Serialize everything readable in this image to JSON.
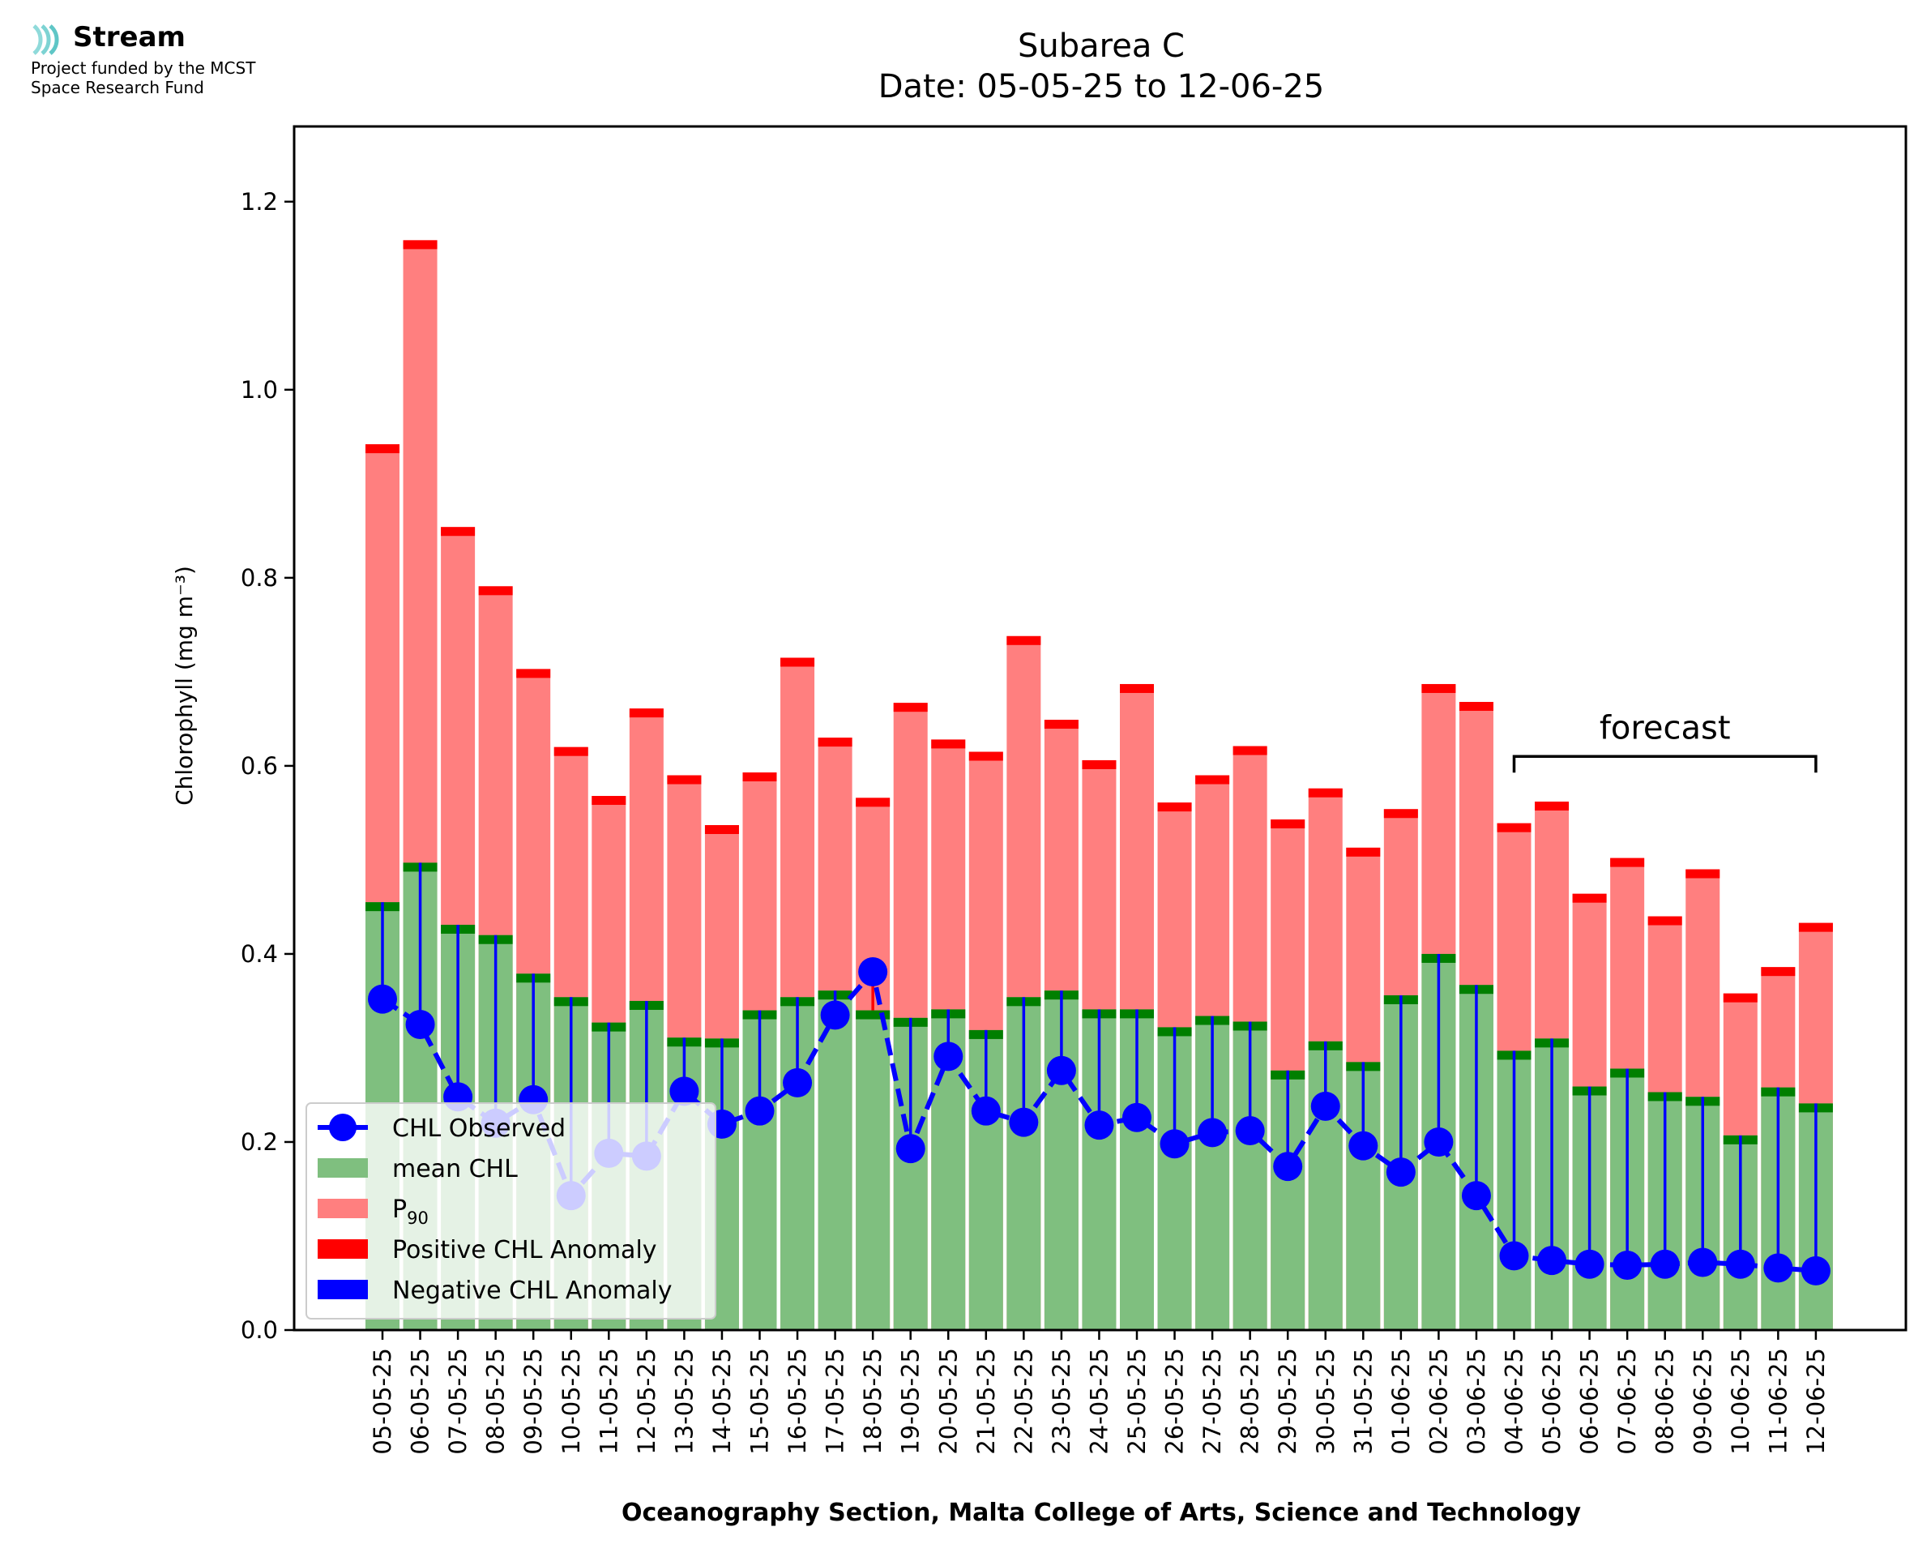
{
  "logo": {
    "name": "Stream",
    "line1": "Project funded by the MCST",
    "line2": "Space Research Fund"
  },
  "chart_data": {
    "type": "bar",
    "title": "Subarea C",
    "subtitle": "Date: 05-05-25 to 12-06-25",
    "xlabel": "Oceanography Section, Malta College of Arts, Science and Technology",
    "ylabel": "Chlorophyll (mg m⁻³)",
    "ylim": [
      0,
      1.28
    ],
    "yticks": [
      0.0,
      0.2,
      0.4,
      0.6,
      0.8,
      1.0,
      1.2
    ],
    "ytick_labels": [
      "0.0",
      "0.2",
      "0.4",
      "0.6",
      "0.8",
      "1.0",
      "1.2"
    ],
    "grid": false,
    "legend_placement": "lower-left",
    "categories": [
      "05-05-25",
      "06-05-25",
      "07-05-25",
      "08-05-25",
      "09-05-25",
      "10-05-25",
      "11-05-25",
      "12-05-25",
      "13-05-25",
      "14-05-25",
      "15-05-25",
      "16-05-25",
      "17-05-25",
      "18-05-25",
      "19-05-25",
      "20-05-25",
      "21-05-25",
      "22-05-25",
      "23-05-25",
      "24-05-25",
      "25-05-25",
      "26-05-25",
      "27-05-25",
      "28-05-25",
      "29-05-25",
      "30-05-25",
      "31-05-25",
      "01-06-25",
      "02-06-25",
      "03-06-25",
      "04-06-25",
      "05-06-25",
      "06-06-25",
      "07-06-25",
      "08-06-25",
      "09-06-25",
      "10-06-25",
      "11-06-25",
      "12-06-25"
    ],
    "series": [
      {
        "name": "CHL Observed",
        "color": "#0000ff",
        "values": [
          0.352,
          0.325,
          0.248,
          0.22,
          0.245,
          0.143,
          0.188,
          0.185,
          0.254,
          0.219,
          0.233,
          0.263,
          0.335,
          0.381,
          0.193,
          0.291,
          0.233,
          0.221,
          0.276,
          0.218,
          0.226,
          0.198,
          0.21,
          0.212,
          0.174,
          0.238,
          0.196,
          0.168,
          0.2,
          0.143,
          0.079,
          0.074,
          0.07,
          0.069,
          0.07,
          0.072,
          0.07,
          0.066,
          0.063
        ]
      },
      {
        "name": "mean CHL",
        "color": "#7fbf7f",
        "edge_color": "#007f00",
        "values": [
          0.455,
          0.497,
          0.431,
          0.42,
          0.379,
          0.354,
          0.327,
          0.35,
          0.311,
          0.31,
          0.34,
          0.354,
          0.361,
          0.34,
          0.332,
          0.341,
          0.319,
          0.354,
          0.361,
          0.341,
          0.341,
          0.322,
          0.334,
          0.328,
          0.276,
          0.307,
          0.285,
          0.356,
          0.4,
          0.367,
          0.297,
          0.31,
          0.259,
          0.278,
          0.253,
          0.248,
          0.207,
          0.258,
          0.241
        ]
      },
      {
        "name": "P90",
        "color": "#ff7f7f",
        "edge_color": "#ff0000",
        "values": [
          0.942,
          1.159,
          0.854,
          0.791,
          0.703,
          0.62,
          0.568,
          0.661,
          0.59,
          0.537,
          0.593,
          0.715,
          0.63,
          0.566,
          0.667,
          0.628,
          0.615,
          0.738,
          0.649,
          0.606,
          0.687,
          0.561,
          0.59,
          0.621,
          0.543,
          0.576,
          0.513,
          0.554,
          0.687,
          0.668,
          0.539,
          0.562,
          0.464,
          0.502,
          0.44,
          0.49,
          0.358,
          0.386,
          0.433
        ]
      }
    ],
    "legend": [
      {
        "label": "CHL Observed",
        "symbol": "line-marker",
        "color": "#0000ff"
      },
      {
        "label": "mean CHL",
        "symbol": "patch",
        "color": "#7fbf7f"
      },
      {
        "label": "P",
        "subscript": "90",
        "symbol": "patch",
        "color": "#ff7f7f"
      },
      {
        "label": "Positive CHL Anomaly",
        "symbol": "patch",
        "color": "#ff0000"
      },
      {
        "label": "Negative CHL Anomaly",
        "symbol": "patch",
        "color": "#0000ff"
      }
    ],
    "annotation": {
      "text": "forecast",
      "from": "04-06-25",
      "to": "12-06-25",
      "y": 0.61
    }
  }
}
